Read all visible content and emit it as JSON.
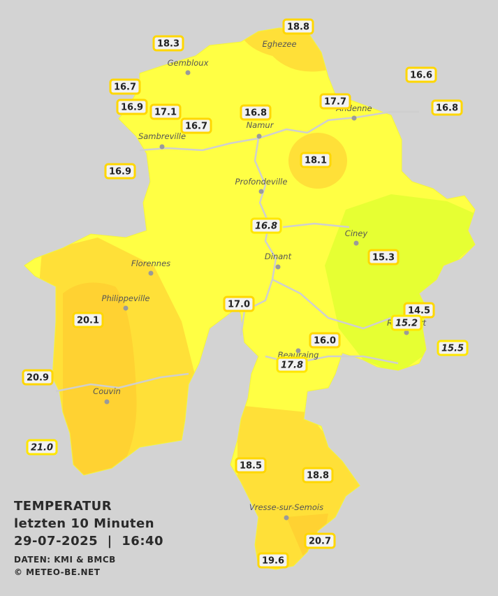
{
  "caption": {
    "title": "TEMPERATUR",
    "subtitle": "letzten 10 Minuten",
    "datetime": "29-07-2025  |  16:40",
    "source": "DATEN: KMI & BMCB",
    "copyright": "© METEO-BE.NET"
  },
  "places": [
    "Eghezee",
    "Gembloux",
    "Andenne",
    "Namur",
    "Sambreville",
    "Profondeville",
    "Ciney",
    "Dinant",
    "Florennes",
    "Philippeville",
    "Rochefort",
    "Beauraing",
    "Couvin",
    "Vresse-sur-Semois"
  ],
  "stations": [
    "18.3",
    "18.8",
    "16.6",
    "16.7",
    "16.9",
    "17.1",
    "16.8",
    "17.7",
    "16.8",
    "16.7",
    "18.1",
    "16.9",
    "15.3",
    "17.0",
    "14.5",
    "20.1",
    "16.0",
    "20.9",
    "18.5",
    "18.8",
    "20.7",
    "19.6"
  ],
  "italic_stations": [
    "16.8",
    "15.2",
    "15.5",
    "17.8",
    "21.0"
  ]
}
